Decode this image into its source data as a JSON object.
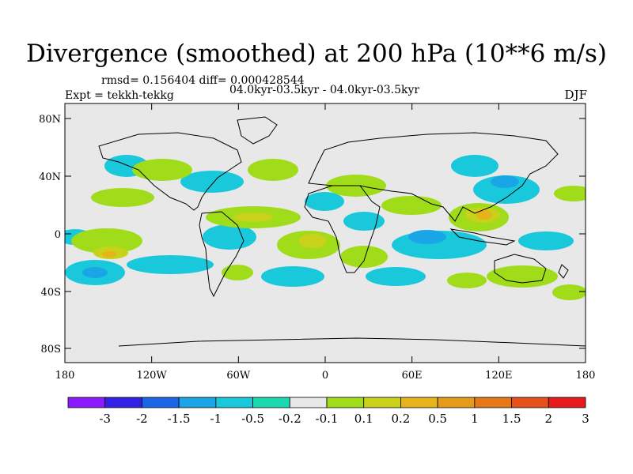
{
  "title": "Divergence (smoothed) at 200 hPa (10**6 m/s)",
  "stats": "rmsd= 0.156404 diff= 0.000428544",
  "period": "04.0kyr-03.5kyr - 04.0kyr-03.5kyr",
  "experiment": "Expt = tekkh-tekkg",
  "season": "DJF",
  "map": {
    "background_color": "#e8e8e8",
    "lat_ticks": [
      "80N",
      "40N",
      "0",
      "40S",
      "80S"
    ],
    "lon_ticks": [
      "180",
      "120W",
      "60W",
      "0",
      "60E",
      "120E",
      "180"
    ]
  },
  "colorbar": {
    "colors": [
      "#8c1aff",
      "#3320e6",
      "#1a66e6",
      "#1aa6e6",
      "#1ac8dc",
      "#1ad8b0",
      "#e8e8e8",
      "#a0dc1a",
      "#c8d21a",
      "#e6b41a",
      "#e69a1a",
      "#e6781a",
      "#e6501a",
      "#e61a1a"
    ],
    "labels": [
      "-3",
      "-2",
      "-1.5",
      "-1",
      "-0.5",
      "-0.2",
      "-0.1",
      "0.1",
      "0.2",
      "0.5",
      "1",
      "1.5",
      "2",
      "3"
    ]
  }
}
